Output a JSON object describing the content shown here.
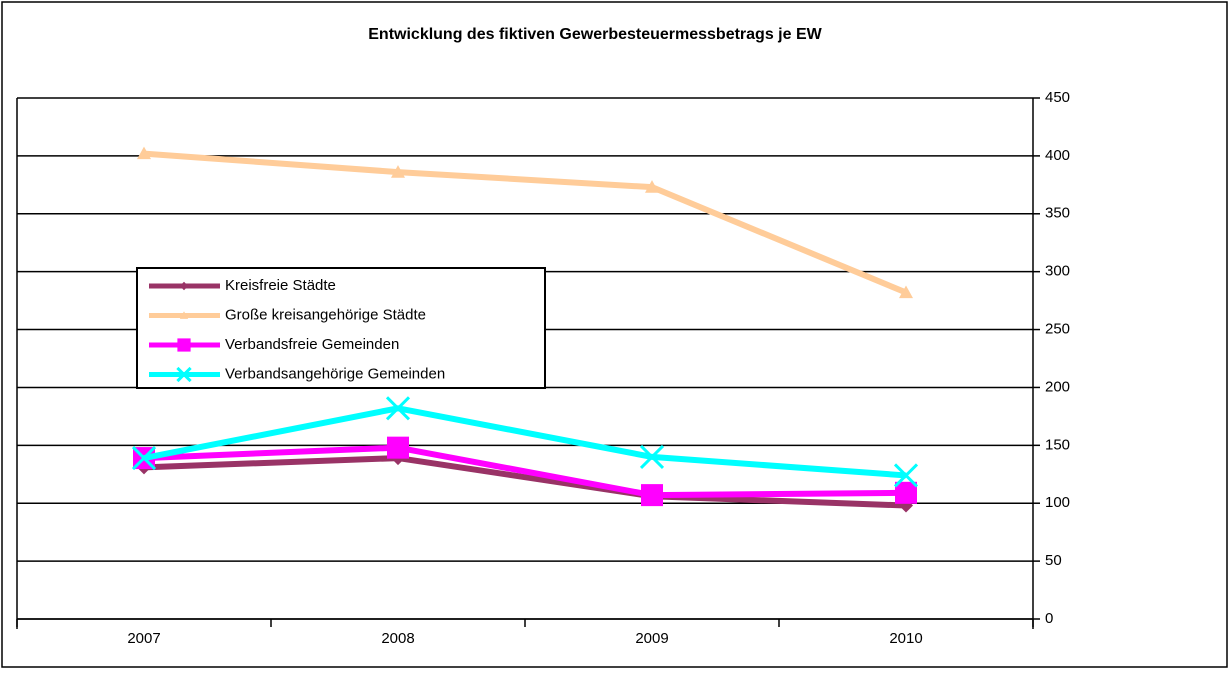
{
  "chart_data": {
    "type": "line",
    "title": "Entwicklung des fiktiven Gewerbesteuermessbetrags  je EW",
    "categories": [
      "2007",
      "2008",
      "2009",
      "2010"
    ],
    "series": [
      {
        "name": "Kreisfreie Städte",
        "color": "#993366",
        "marker": "diamond",
        "values": [
          131,
          139,
          106,
          98
        ]
      },
      {
        "name": "Große kreisangehörige Städte",
        "color": "#FFCC99",
        "marker": "triangle",
        "values": [
          402,
          386,
          373,
          282
        ]
      },
      {
        "name": "Verbandsfreie Gemeinden",
        "color": "#FF00FF",
        "marker": "square",
        "values": [
          139,
          148,
          107,
          109
        ]
      },
      {
        "name": "Verbandsangehörige Gemeinden",
        "color": "#00FFFF",
        "marker": "x",
        "values": [
          139,
          182,
          140,
          124
        ]
      }
    ],
    "ylim": [
      0,
      450
    ],
    "yticks": [
      0,
      50,
      100,
      150,
      200,
      250,
      300,
      350,
      400,
      450
    ],
    "y_axis_side": "right",
    "grid": true,
    "legend": "left"
  }
}
